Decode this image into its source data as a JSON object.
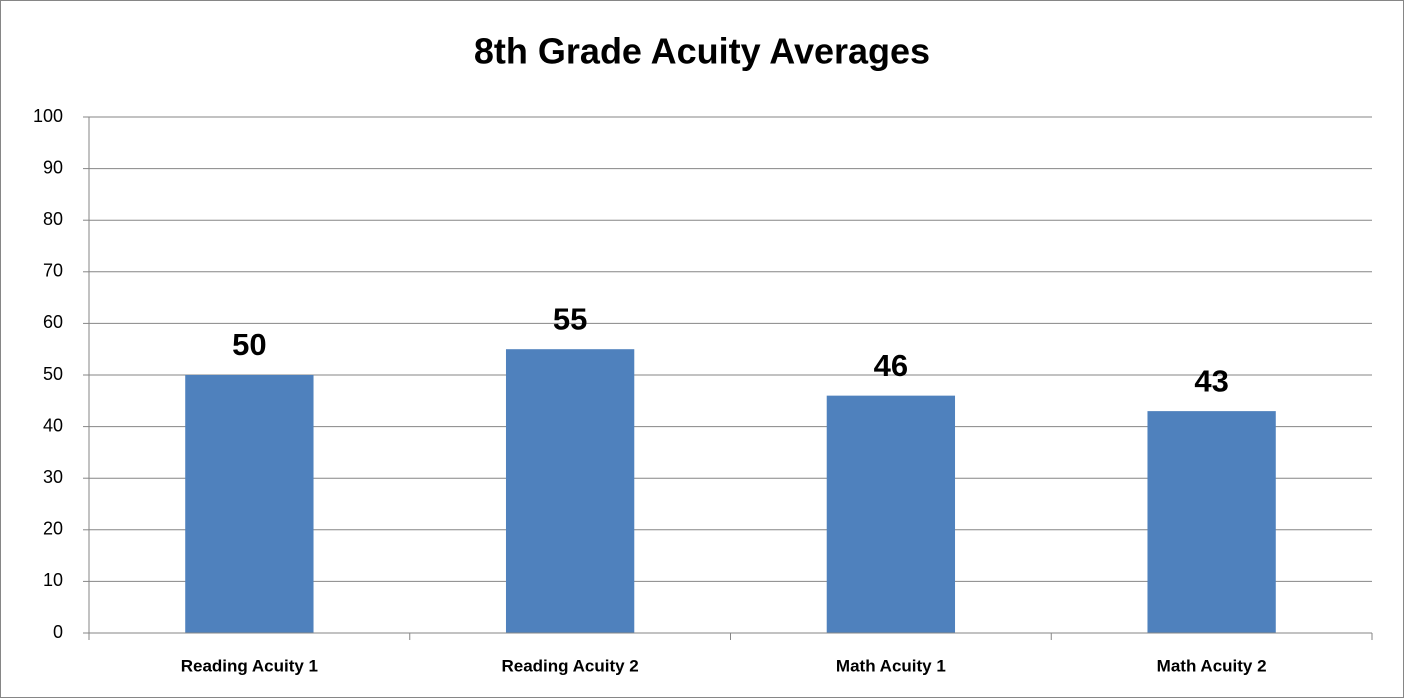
{
  "chart_data": {
    "type": "bar",
    "title": "8th Grade Acuity Averages",
    "categories": [
      "Reading Acuity 1",
      "Reading Acuity 2",
      "Math Acuity 1",
      "Math Acuity 2"
    ],
    "values": [
      50,
      55,
      46,
      43
    ],
    "color": "#4f81bd",
    "ylim": [
      0,
      100
    ],
    "yticks": [
      0,
      10,
      20,
      30,
      40,
      50,
      60,
      70,
      80,
      90,
      100
    ],
    "grid": true
  }
}
